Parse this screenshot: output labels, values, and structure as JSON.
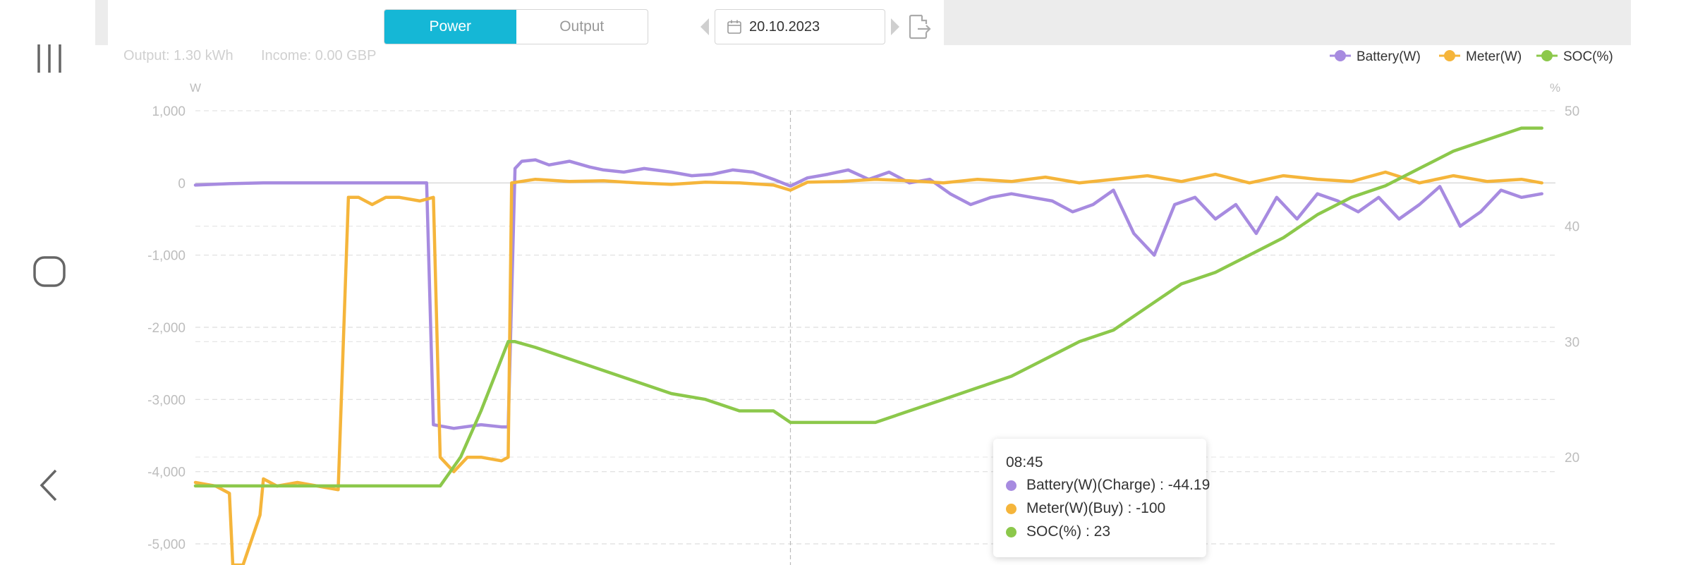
{
  "tabs": [
    {
      "label": "Power",
      "active": true
    },
    {
      "label": "Output",
      "active": false
    }
  ],
  "date": "20.10.2023",
  "summary": {
    "output": "Output: 1.30 kWh",
    "income": "Income: 0.00 GBP"
  },
  "tooltip": {
    "time": "08:45",
    "rows": [
      {
        "text": "Battery(W)(Charge) : -44.19",
        "color": "#a78be0"
      },
      {
        "text": "Meter(W)(Buy) : -100",
        "color": "#f5b53b"
      },
      {
        "text": "SOC(%) : 23",
        "color": "#8cc84b"
      }
    ]
  },
  "chart_data": {
    "type": "line",
    "ylabel": "W",
    "y2label": "%",
    "ylim": [
      -5300,
      1000
    ],
    "y2lim": [
      17.5,
      50
    ],
    "yticks": [
      "1,000",
      "0",
      "-1,000",
      "-2,000",
      "-3,000",
      "-4,000",
      "-5,000"
    ],
    "ytick_values": [
      1000,
      0,
      -1000,
      -2000,
      -3000,
      -4000,
      -5000
    ],
    "y2ticks": [
      "50",
      "40",
      "30",
      "20"
    ],
    "y2tick_values": [
      50,
      40,
      30,
      20
    ],
    "grid": true,
    "legend_position": "top-right",
    "x_range": [
      0,
      24
    ],
    "cursor_x": 8.75,
    "series": [
      {
        "name": "Battery(W)",
        "color": "#a78be0",
        "axis": "left",
        "x": [
          0,
          0.5,
          1,
          2,
          3,
          3.4,
          3.5,
          3.8,
          4.2,
          4.5,
          4.6,
          4.7,
          4.8,
          5.0,
          5.2,
          5.5,
          5.8,
          6.0,
          6.3,
          6.6,
          7.0,
          7.3,
          7.6,
          7.9,
          8.2,
          8.5,
          8.75,
          9.0,
          9.3,
          9.6,
          9.9,
          10.2,
          10.5,
          10.8,
          11.1,
          11.4,
          11.7,
          12.0,
          12.3,
          12.6,
          12.9,
          13.2,
          13.5,
          13.8,
          14.1,
          14.4,
          14.7,
          15.0,
          15.3,
          15.6,
          15.9,
          16.2,
          16.5,
          16.8,
          17.1,
          17.4,
          17.7,
          18.0,
          18.3,
          18.6,
          18.9,
          19.2,
          19.5,
          19.8
        ],
        "values": [
          -30,
          -10,
          0,
          0,
          0,
          0,
          -3350,
          -3400,
          -3350,
          -3380,
          -3380,
          200,
          300,
          320,
          250,
          300,
          220,
          180,
          150,
          200,
          150,
          100,
          120,
          180,
          150,
          50,
          -44,
          70,
          120,
          180,
          50,
          150,
          0,
          50,
          -150,
          -300,
          -200,
          -150,
          -200,
          -250,
          -400,
          -300,
          -100,
          -700,
          -1000,
          -300,
          -200,
          -500,
          -300,
          -700,
          -200,
          -500,
          -150,
          -250,
          -400,
          -200,
          -500,
          -300,
          -50,
          -600,
          -400,
          -100,
          -200,
          -150
        ]
      },
      {
        "name": "Meter(W)",
        "color": "#f5b53b",
        "axis": "left",
        "x": [
          0,
          0.3,
          0.5,
          0.55,
          0.7,
          0.95,
          1.0,
          1.2,
          1.5,
          1.8,
          2.1,
          2.25,
          2.4,
          2.6,
          2.8,
          3.0,
          3.3,
          3.5,
          3.6,
          3.8,
          4.0,
          4.2,
          4.5,
          4.6,
          4.65,
          5.0,
          5.5,
          6.0,
          6.5,
          7.0,
          7.5,
          8.0,
          8.5,
          8.75,
          9.0,
          9.5,
          10.0,
          10.5,
          11.0,
          11.5,
          12.0,
          12.5,
          13.0,
          13.5,
          14.0,
          14.5,
          15.0,
          15.5,
          16.0,
          16.5,
          17.0,
          17.5,
          18.0,
          18.5,
          19.0,
          19.5,
          19.8
        ],
        "values": [
          -4150,
          -4200,
          -4300,
          -5300,
          -5300,
          -4600,
          -4100,
          -4200,
          -4150,
          -4200,
          -4250,
          -200,
          -200,
          -300,
          -200,
          -200,
          -250,
          -200,
          -3800,
          -4000,
          -3800,
          -3800,
          -3850,
          -3800,
          0,
          50,
          20,
          30,
          0,
          -20,
          10,
          0,
          -30,
          -100,
          10,
          20,
          50,
          30,
          0,
          50,
          20,
          80,
          0,
          50,
          100,
          20,
          120,
          0,
          100,
          50,
          20,
          150,
          0,
          100,
          20,
          50,
          0
        ]
      },
      {
        "name": "SOC(%)",
        "color": "#8cc84b",
        "axis": "right",
        "x": [
          0,
          1,
          2,
          3,
          3.6,
          3.9,
          4.2,
          4.4,
          4.6,
          4.7,
          5.0,
          5.5,
          6.0,
          6.5,
          7.0,
          7.5,
          8.0,
          8.5,
          8.75,
          9.0,
          10.0,
          10.5,
          11.0,
          11.5,
          12.0,
          12.5,
          13.0,
          13.5,
          14.0,
          14.5,
          15.0,
          15.5,
          16.0,
          16.5,
          17.0,
          17.5,
          18.0,
          18.5,
          19.0,
          19.5,
          19.8
        ],
        "values": [
          17.5,
          17.5,
          17.5,
          17.5,
          17.5,
          20,
          24,
          27,
          30,
          30,
          29.5,
          28.5,
          27.5,
          26.5,
          25.5,
          25,
          24,
          24,
          23,
          23,
          23,
          24,
          25,
          26,
          27,
          28.5,
          30,
          31,
          33,
          35,
          36,
          37.5,
          39,
          41,
          42.5,
          43.5,
          45,
          46.5,
          47.5,
          48.5,
          48.5
        ]
      }
    ]
  }
}
